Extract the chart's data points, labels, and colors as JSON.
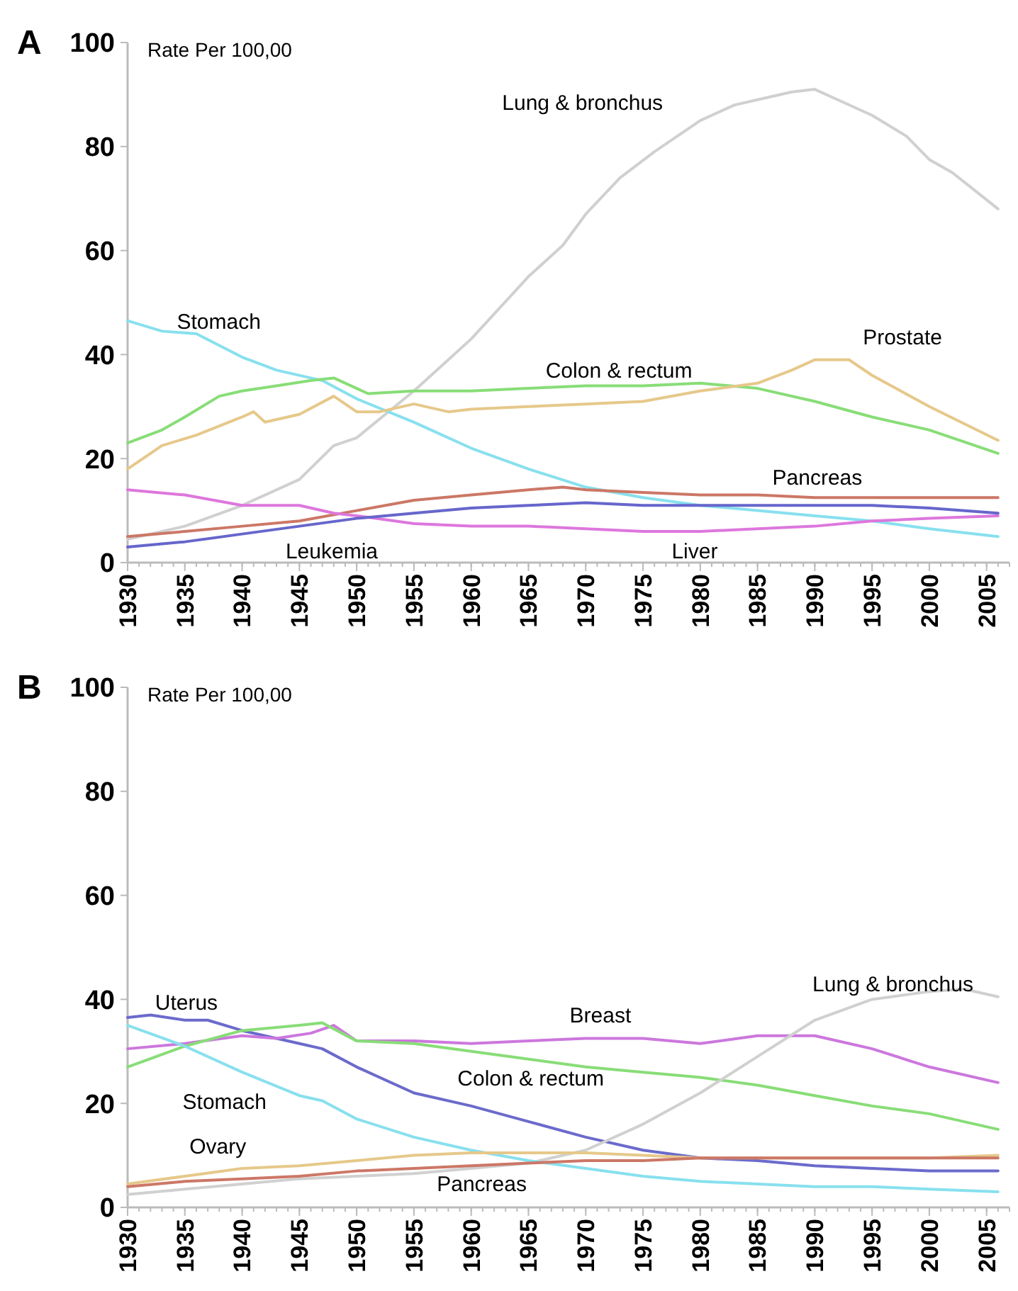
{
  "chart_data": [
    {
      "type": "line",
      "title": "A",
      "ylabel": "Rate Per 100,00",
      "xlim": [
        1930,
        2007
      ],
      "xticks": [
        1930,
        1935,
        1940,
        1945,
        1950,
        1955,
        1960,
        1965,
        1970,
        1975,
        1980,
        1985,
        1990,
        1995,
        2000,
        2005
      ],
      "ylim": [
        0,
        100
      ],
      "yticks": [
        0,
        20,
        40,
        60,
        80,
        100
      ],
      "grid": false,
      "series": [
        {
          "name": "Lung & bronchus",
          "color": "#d0d0d0",
          "x": [
            1930,
            1935,
            1940,
            1945,
            1948,
            1950,
            1955,
            1960,
            1965,
            1968,
            1970,
            1973,
            1976,
            1978,
            1980,
            1983,
            1985,
            1988,
            1990,
            1992,
            1995,
            1998,
            2000,
            2002,
            2004,
            2006
          ],
          "values": [
            4.5,
            7,
            11,
            16,
            22.5,
            24,
            33,
            43,
            55,
            61,
            67,
            74,
            79,
            82,
            85,
            88,
            89,
            90.5,
            91,
            89,
            86,
            82,
            77.5,
            75,
            71.5,
            68
          ]
        },
        {
          "name": "Stomach",
          "color": "#88e0ee",
          "x": [
            1930,
            1933,
            1936,
            1940,
            1943,
            1947,
            1950,
            1955,
            1960,
            1965,
            1970,
            1975,
            1980,
            1985,
            1990,
            1995,
            2000,
            2006
          ],
          "values": [
            46.5,
            44.5,
            44,
            39.5,
            37,
            35,
            31.5,
            27,
            22,
            18,
            14.5,
            12.5,
            11,
            10,
            9,
            8,
            6.5,
            5
          ]
        },
        {
          "name": "Colon & rectum",
          "color": "#88dd77",
          "x": [
            1930,
            1933,
            1935,
            1938,
            1940,
            1943,
            1946,
            1948,
            1951,
            1955,
            1960,
            1965,
            1970,
            1975,
            1980,
            1985,
            1990,
            1995,
            2000,
            2006
          ],
          "values": [
            23,
            25.5,
            28,
            32,
            33,
            34,
            35,
            35.5,
            32.5,
            33,
            33,
            33.5,
            34,
            34,
            34.5,
            33.5,
            31,
            28,
            25.5,
            21
          ]
        },
        {
          "name": "Prostate",
          "color": "#e6c88a",
          "x": [
            1930,
            1933,
            1936,
            1940,
            1941,
            1942,
            1945,
            1948,
            1950,
            1952,
            1955,
            1958,
            1960,
            1965,
            1970,
            1975,
            1980,
            1985,
            1988,
            1990,
            1993,
            1995,
            2000,
            2006
          ],
          "values": [
            18,
            22.5,
            24.5,
            28,
            29,
            27,
            28.5,
            32,
            29,
            29,
            30.5,
            29,
            29.5,
            30,
            30.5,
            31,
            33,
            34.5,
            37,
            39,
            39,
            36,
            30,
            23.5
          ]
        },
        {
          "name": "Pancreas",
          "color": "#cc7766",
          "x": [
            1930,
            1935,
            1940,
            1945,
            1950,
            1955,
            1960,
            1965,
            1968,
            1970,
            1975,
            1980,
            1985,
            1990,
            1995,
            2000,
            2006
          ],
          "values": [
            5,
            6,
            7,
            8,
            10,
            12,
            13,
            14,
            14.5,
            14,
            13.5,
            13,
            13,
            12.5,
            12.5,
            12.5,
            12.5
          ]
        },
        {
          "name": "Liver",
          "color": "#dd77dd",
          "x": [
            1930,
            1935,
            1940,
            1945,
            1948,
            1950,
            1955,
            1960,
            1965,
            1970,
            1975,
            1980,
            1985,
            1990,
            1995,
            2000,
            2006
          ],
          "values": [
            14,
            13,
            11,
            11,
            9.5,
            9,
            7.5,
            7,
            7,
            6.5,
            6,
            6,
            6.5,
            7,
            8,
            8.5,
            9
          ]
        },
        {
          "name": "Leukemia",
          "color": "#6666cc",
          "x": [
            1930,
            1935,
            1940,
            1945,
            1950,
            1955,
            1960,
            1965,
            1970,
            1975,
            1980,
            1985,
            1990,
            1995,
            2000,
            2006
          ],
          "values": [
            3,
            4,
            5.5,
            7,
            8.5,
            9.5,
            10.5,
            11,
            11.5,
            11,
            11,
            11,
            11,
            11,
            10.5,
            9.5
          ]
        }
      ]
    },
    {
      "type": "line",
      "title": "B",
      "ylabel": "Rate Per 100,00",
      "xlim": [
        1930,
        2007
      ],
      "xticks": [
        1930,
        1935,
        1940,
        1945,
        1950,
        1955,
        1960,
        1965,
        1970,
        1975,
        1980,
        1985,
        1990,
        1995,
        2000,
        2005
      ],
      "ylim": [
        0,
        100
      ],
      "yticks": [
        0,
        20,
        40,
        60,
        80,
        100
      ],
      "grid": false,
      "series": [
        {
          "name": "Uterus",
          "color": "#6a6acc",
          "x": [
            1930,
            1932,
            1935,
            1937,
            1940,
            1943,
            1945,
            1947,
            1950,
            1952,
            1955,
            1960,
            1965,
            1970,
            1975,
            1980,
            1985,
            1990,
            1995,
            2000,
            2006
          ],
          "values": [
            36.5,
            37,
            36,
            36,
            34,
            32.5,
            31.5,
            30.5,
            27,
            25,
            22,
            19.5,
            16.5,
            13.5,
            11,
            9.5,
            9,
            8,
            7.5,
            7,
            7
          ]
        },
        {
          "name": "Breast",
          "color": "#cc77dd",
          "x": [
            1930,
            1935,
            1940,
            1943,
            1946,
            1948,
            1950,
            1955,
            1960,
            1965,
            1970,
            1975,
            1980,
            1985,
            1990,
            1993,
            1995,
            2000,
            2006
          ],
          "values": [
            30.5,
            31.5,
            33,
            32.5,
            33.5,
            35,
            32,
            32,
            31.5,
            32,
            32.5,
            32.5,
            31.5,
            33,
            33,
            31.5,
            30.5,
            27,
            24
          ]
        },
        {
          "name": "Colon & rectum",
          "color": "#88dd77",
          "x": [
            1930,
            1935,
            1940,
            1945,
            1947,
            1950,
            1955,
            1960,
            1965,
            1970,
            1975,
            1980,
            1985,
            1990,
            1995,
            2000,
            2006
          ],
          "values": [
            27,
            31,
            34,
            35,
            35.5,
            32,
            31.5,
            30,
            28.5,
            27,
            26,
            25,
            23.5,
            21.5,
            19.5,
            18,
            15
          ]
        },
        {
          "name": "Lung & bronchus",
          "color": "#d0d0d0",
          "x": [
            1930,
            1935,
            1940,
            1945,
            1950,
            1955,
            1960,
            1965,
            1970,
            1975,
            1980,
            1985,
            1990,
            1995,
            2000,
            2003,
            2006
          ],
          "values": [
            2.5,
            3.5,
            4.5,
            5.5,
            6,
            6.5,
            7.5,
            8.5,
            11,
            16,
            22,
            29,
            36,
            40,
            41.5,
            42,
            40.5
          ]
        },
        {
          "name": "Stomach",
          "color": "#88e0ee",
          "x": [
            1930,
            1935,
            1940,
            1945,
            1947,
            1950,
            1955,
            1960,
            1965,
            1970,
            1975,
            1980,
            1985,
            1990,
            1995,
            2000,
            2006
          ],
          "values": [
            35,
            31,
            26,
            21.5,
            20.5,
            17,
            13.5,
            11,
            9,
            7.5,
            6,
            5,
            4.5,
            4,
            4,
            3.5,
            3
          ]
        },
        {
          "name": "Ovary",
          "color": "#e6c88a",
          "x": [
            1930,
            1935,
            1940,
            1945,
            1950,
            1955,
            1960,
            1965,
            1970,
            1975,
            1980,
            1985,
            1990,
            1995,
            2000,
            2006
          ],
          "values": [
            4.5,
            6,
            7.5,
            8,
            9,
            10,
            10.5,
            10.5,
            10.5,
            10,
            9.5,
            9.5,
            9.5,
            9.5,
            9.5,
            10
          ]
        },
        {
          "name": "Pancreas",
          "color": "#cc7766",
          "x": [
            1930,
            1935,
            1940,
            1945,
            1950,
            1955,
            1960,
            1965,
            1970,
            1975,
            1980,
            1985,
            1990,
            1995,
            2000,
            2006
          ],
          "values": [
            4,
            5,
            5.5,
            6,
            7,
            7.5,
            8,
            8.5,
            9,
            9,
            9.5,
            9.5,
            9.5,
            9.5,
            9.5,
            9.5
          ]
        }
      ]
    }
  ]
}
